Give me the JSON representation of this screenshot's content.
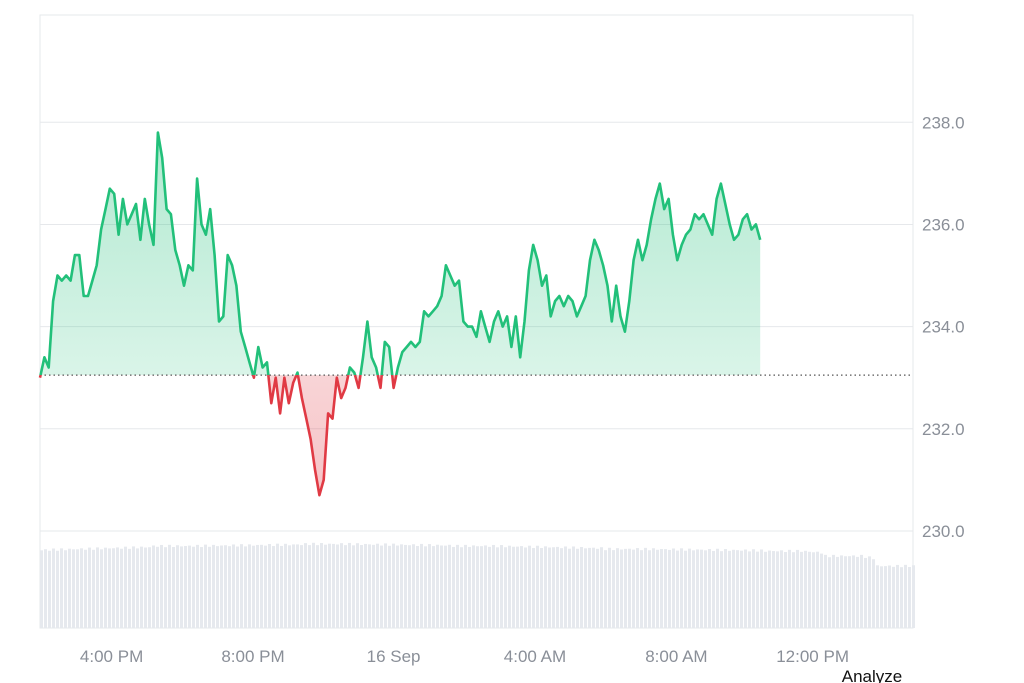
{
  "colors": {
    "up": "#22c07a",
    "down": "#e03a44",
    "grid": "#e6e8eb",
    "baseline": "#555555",
    "volume": "#e6e9ee",
    "axis_text": "#8a8f98"
  },
  "footer": {
    "analyze_label": "Analyze"
  },
  "chart_data": {
    "type": "area",
    "baseline": 233.05,
    "ylim": [
      228.1,
      240.1
    ],
    "y_ticks": [
      {
        "value": 230,
        "label": "230.0"
      },
      {
        "value": 232,
        "label": "232.0"
      },
      {
        "value": 234,
        "label": "234.0"
      },
      {
        "value": 236,
        "label": "236.0"
      },
      {
        "value": 238,
        "label": "238.0"
      }
    ],
    "x_range": [
      0,
      1000
    ],
    "x_ticks": [
      {
        "x": 82,
        "label": "4:00 PM"
      },
      {
        "x": 244,
        "label": "8:00 PM"
      },
      {
        "x": 405,
        "label": "16 Sep"
      },
      {
        "x": 567,
        "label": "4:00 AM"
      },
      {
        "x": 729,
        "label": "8:00 AM"
      },
      {
        "x": 885,
        "label": "12:00 PM"
      }
    ],
    "price": [
      [
        0,
        233.0
      ],
      [
        5,
        233.4
      ],
      [
        10,
        233.2
      ],
      [
        15,
        234.5
      ],
      [
        20,
        235.0
      ],
      [
        25,
        234.9
      ],
      [
        30,
        235.0
      ],
      [
        35,
        234.9
      ],
      [
        40,
        235.4
      ],
      [
        45,
        235.4
      ],
      [
        50,
        234.6
      ],
      [
        55,
        234.6
      ],
      [
        60,
        234.9
      ],
      [
        65,
        235.2
      ],
      [
        70,
        235.9
      ],
      [
        75,
        236.3
      ],
      [
        80,
        236.7
      ],
      [
        85,
        236.6
      ],
      [
        90,
        235.8
      ],
      [
        95,
        236.5
      ],
      [
        100,
        236.0
      ],
      [
        105,
        236.2
      ],
      [
        110,
        236.4
      ],
      [
        115,
        235.7
      ],
      [
        120,
        236.5
      ],
      [
        125,
        236.0
      ],
      [
        130,
        235.6
      ],
      [
        135,
        237.8
      ],
      [
        140,
        237.3
      ],
      [
        145,
        236.3
      ],
      [
        150,
        236.2
      ],
      [
        155,
        235.5
      ],
      [
        160,
        235.2
      ],
      [
        165,
        234.8
      ],
      [
        170,
        235.2
      ],
      [
        175,
        235.1
      ],
      [
        180,
        236.9
      ],
      [
        185,
        236.0
      ],
      [
        190,
        235.8
      ],
      [
        195,
        236.3
      ],
      [
        200,
        235.4
      ],
      [
        205,
        234.1
      ],
      [
        210,
        234.2
      ],
      [
        215,
        235.4
      ],
      [
        220,
        235.2
      ],
      [
        225,
        234.8
      ],
      [
        230,
        233.9
      ],
      [
        235,
        233.6
      ],
      [
        240,
        233.3
      ],
      [
        245,
        233.0
      ],
      [
        250,
        233.6
      ],
      [
        255,
        233.2
      ],
      [
        260,
        233.3
      ],
      [
        265,
        232.5
      ],
      [
        270,
        233.0
      ],
      [
        275,
        232.3
      ],
      [
        280,
        233.0
      ],
      [
        285,
        232.5
      ],
      [
        290,
        232.9
      ],
      [
        295,
        233.1
      ],
      [
        300,
        232.6
      ],
      [
        305,
        232.2
      ],
      [
        310,
        231.8
      ],
      [
        315,
        231.2
      ],
      [
        320,
        230.7
      ],
      [
        325,
        231.0
      ],
      [
        330,
        232.3
      ],
      [
        335,
        232.2
      ],
      [
        340,
        233.0
      ],
      [
        345,
        232.6
      ],
      [
        350,
        232.8
      ],
      [
        355,
        233.2
      ],
      [
        360,
        233.1
      ],
      [
        365,
        232.8
      ],
      [
        370,
        233.4
      ],
      [
        375,
        234.1
      ],
      [
        380,
        233.4
      ],
      [
        385,
        233.2
      ],
      [
        390,
        232.8
      ],
      [
        395,
        233.7
      ],
      [
        400,
        233.6
      ],
      [
        405,
        232.8
      ],
      [
        410,
        233.2
      ],
      [
        415,
        233.5
      ],
      [
        420,
        233.6
      ],
      [
        425,
        233.7
      ],
      [
        430,
        233.6
      ],
      [
        435,
        233.7
      ],
      [
        440,
        234.3
      ],
      [
        445,
        234.2
      ],
      [
        450,
        234.3
      ],
      [
        455,
        234.4
      ],
      [
        460,
        234.6
      ],
      [
        465,
        235.2
      ],
      [
        470,
        235.0
      ],
      [
        475,
        234.8
      ],
      [
        480,
        234.9
      ],
      [
        485,
        234.1
      ],
      [
        490,
        234.0
      ],
      [
        495,
        234.0
      ],
      [
        500,
        233.8
      ],
      [
        505,
        234.3
      ],
      [
        510,
        234.0
      ],
      [
        515,
        233.7
      ],
      [
        520,
        234.1
      ],
      [
        525,
        234.3
      ],
      [
        530,
        234.0
      ],
      [
        535,
        234.2
      ],
      [
        540,
        233.6
      ],
      [
        545,
        234.2
      ],
      [
        550,
        233.4
      ],
      [
        555,
        234.1
      ],
      [
        560,
        235.1
      ],
      [
        565,
        235.6
      ],
      [
        570,
        235.3
      ],
      [
        575,
        234.8
      ],
      [
        580,
        235.0
      ],
      [
        585,
        234.2
      ],
      [
        590,
        234.5
      ],
      [
        595,
        234.6
      ],
      [
        600,
        234.4
      ],
      [
        605,
        234.6
      ],
      [
        610,
        234.5
      ],
      [
        615,
        234.2
      ],
      [
        620,
        234.4
      ],
      [
        625,
        234.6
      ],
      [
        630,
        235.3
      ],
      [
        635,
        235.7
      ],
      [
        640,
        235.5
      ],
      [
        645,
        235.2
      ],
      [
        650,
        234.8
      ],
      [
        655,
        234.1
      ],
      [
        660,
        234.8
      ],
      [
        665,
        234.2
      ],
      [
        670,
        233.9
      ],
      [
        675,
        234.5
      ],
      [
        680,
        235.3
      ],
      [
        685,
        235.7
      ],
      [
        690,
        235.3
      ],
      [
        695,
        235.6
      ],
      [
        700,
        236.1
      ],
      [
        705,
        236.5
      ],
      [
        710,
        236.8
      ],
      [
        715,
        236.3
      ],
      [
        720,
        236.5
      ],
      [
        725,
        235.8
      ],
      [
        730,
        235.3
      ],
      [
        735,
        235.6
      ],
      [
        740,
        235.8
      ],
      [
        745,
        235.9
      ],
      [
        750,
        236.2
      ],
      [
        755,
        236.1
      ],
      [
        760,
        236.2
      ],
      [
        765,
        236.0
      ],
      [
        770,
        235.8
      ],
      [
        775,
        236.5
      ],
      [
        780,
        236.8
      ],
      [
        785,
        236.4
      ],
      [
        790,
        236.0
      ],
      [
        795,
        235.7
      ],
      [
        800,
        235.8
      ],
      [
        805,
        236.1
      ],
      [
        810,
        236.2
      ],
      [
        815,
        235.9
      ],
      [
        820,
        236.0
      ],
      [
        825,
        235.7
      ]
    ]
  }
}
